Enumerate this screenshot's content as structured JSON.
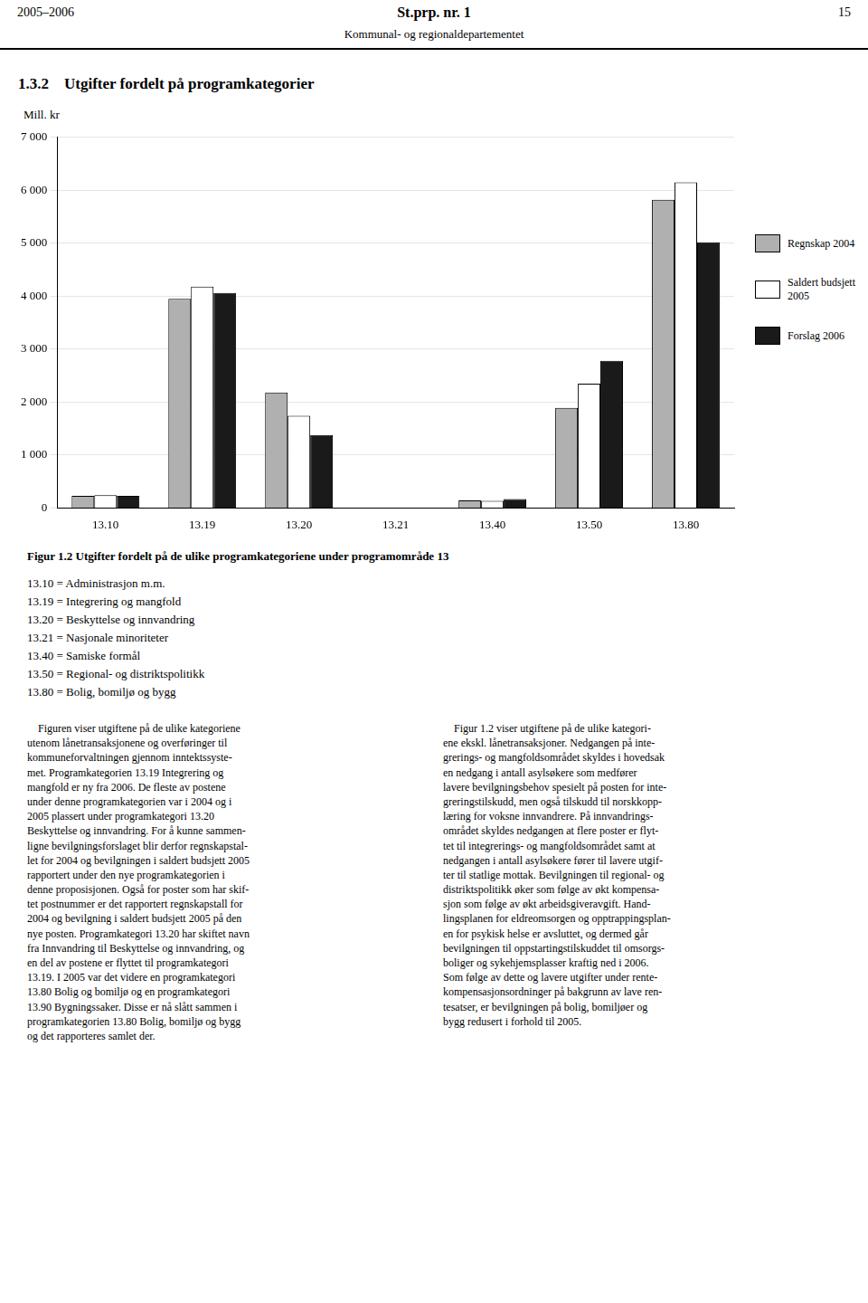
{
  "header": {
    "left": "2005–2006",
    "center": "St.prp. nr. 1",
    "right": "15",
    "sub": "Kommunal- og regionaldepartementet"
  },
  "chart_data": {
    "type": "bar",
    "title": "1.3.2    Utgifter fordelt på programkategorier",
    "caption": "Figur 1.2  Utgifter fordelt på de ulike programkategoriene under programområde 13",
    "ylabel": "Mill. kr",
    "categories": [
      "13.10",
      "13.19",
      "13.20",
      "13.21",
      "13.40",
      "13.50",
      "13.80"
    ],
    "series": [
      {
        "name": "Regnskap 2004",
        "color": "#b0b0b0",
        "values": [
          230,
          3950,
          2180,
          0,
          145,
          1890,
          5820
        ]
      },
      {
        "name": "Saldert budsjett\n2005",
        "color": "#ffffff",
        "values": [
          240,
          4180,
          1740,
          0,
          135,
          2350,
          6150
        ]
      },
      {
        "name": "Forslag 2006",
        "color": "#1a1a1a",
        "values": [
          230,
          4060,
          1380,
          0,
          170,
          2780,
          5020
        ]
      }
    ],
    "ylim": [
      0,
      7000
    ],
    "yticks": [
      0,
      {
        "value": 1000,
        "label": "1 000"
      },
      {
        "value": 2000,
        "label": "2 000"
      },
      {
        "value": 3000,
        "label": "3 000"
      },
      {
        "value": 4000,
        "label": "4 000"
      },
      {
        "value": 5000,
        "label": "5 000"
      },
      {
        "value": 6000,
        "label": "6 000"
      },
      {
        "value": 7000,
        "label": "7 000"
      }
    ],
    "grid": true,
    "legend": "right",
    "annotations": [
      "13.10 = Administrasjon m.m.",
      "13.19 = Integrering og mangfold",
      "13.20 = Beskyttelse og innvandring",
      "13.21 = Nasjonale minoriteter",
      "13.40 = Samiske formål",
      "13.50 = Regional- og distriktspolitikk",
      "13.80 = Bolig, bomiljø og bygg"
    ]
  },
  "body": [
    "    Figuren viser utgiftene på de ulike kategoriene\nutenom lånetransaksjonene og overføringer til\nkommuneforvaltningen gjennom inntektssyste-\nmet. Programkategorien 13.19 Integrering og\nmangfold er ny fra 2006. De fleste av postene\nunder denne programkategorien var i 2004 og i\n2005 plassert under programkategori 13.20\nBeskyttelse og innvandring. For å kunne sammen-\nligne bevilgningsforslaget blir derfor regnskapstal-\nlet for 2004 og bevilgningen i saldert budsjett 2005\nrapportert under den nye programkategorien i\ndenne proposisjonen. Også for poster som har skif-\ntet postnummer er det rapportert regnskapstall for\n2004 og bevilgning i saldert budsjett 2005 på den\nnye posten. Programkategori 13.20 har skiftet navn\nfra Innvandring til Beskyttelse og innvandring, og\nen del av postene er flyttet til programkategori\n13.19. I 2005 var det videre en programkategori\n13.80 Bolig og bomiljø og en programkategori\n13.90 Bygningssaker. Disse er nå slått sammen i\nprogramkategorien 13.80 Bolig, bomiljø og bygg\nog det rapporteres samlet der.",
    "    Figur 1.2 viser utgiftene på de ulike kategori-\nene ekskl. lånetransaksjoner. Nedgangen på inte-\ngrerings- og mangfoldsområdet skyldes i hovedsak\nen nedgang i antall asylsøkere som medfører\nlavere bevilgningsbehov spesielt på posten for inte-\ngreringstilskudd, men også tilskudd til norskkopp-\nlæring for voksne innvandrere. På innvandrings-\nområdet skyldes nedgangen at flere poster er flyt-\ntet til integrerings- og mangfoldsområdet samt at\nnedgangen i antall asylsøkere fører til lavere utgif-\nter til statlige mottak. Bevilgningen til regional- og\ndistriktspolitikk øker som følge av økt kompensa-\nsjon som følge av økt arbeidsgiveravgift. Hand-\nlingsplanen for eldreomsorgen og opptrappingsplan-\nen for psykisk helse er avsluttet, og dermed går\nbevilgningen til oppstartingstilskuddet til omsorgs-\nboliger og sykehjemsplasser kraftig ned i 2006.\nSom følge av dette og lavere utgifter under rente-\nkompensasjonsordninger på bakgrunn av lave ren-\ntesatser, er bevilgningen på bolig, bomiljøer og\nbygg redusert i forhold til 2005."
  ]
}
